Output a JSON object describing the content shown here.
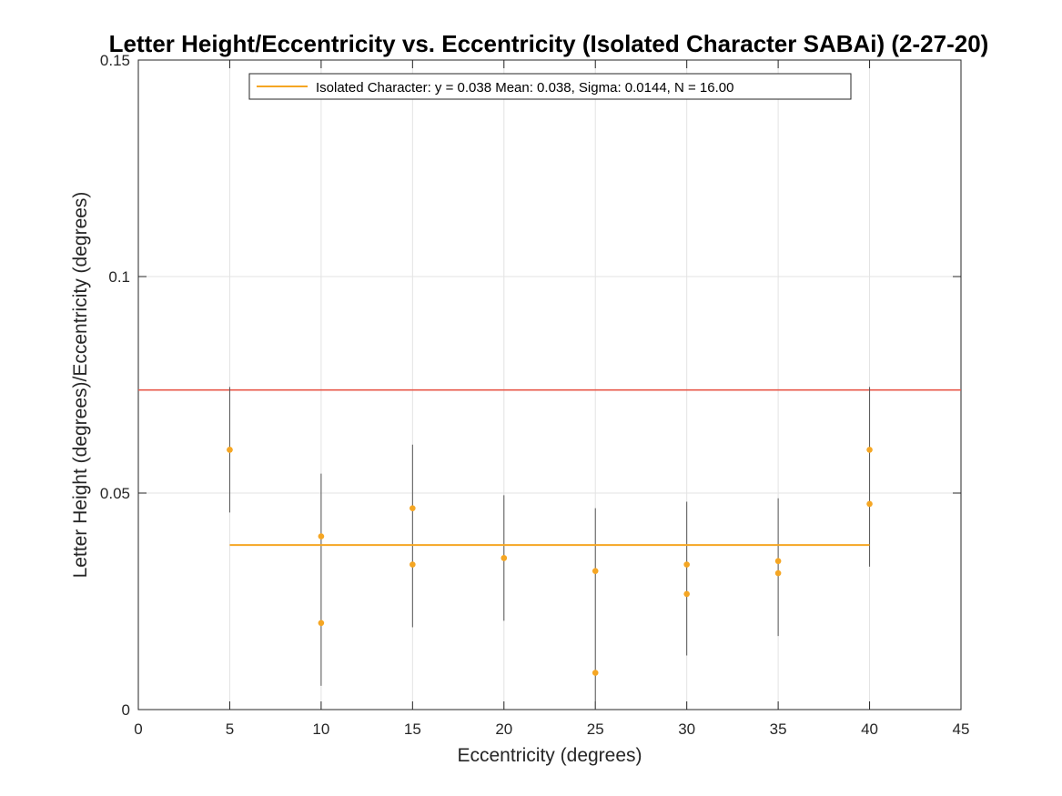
{
  "chart_data": {
    "type": "scatter",
    "title": "Letter Height/Eccentricity vs. Eccentricity (Isolated Character SABAi) (2-27-20)",
    "xlabel": "Eccentricity (degrees)",
    "ylabel": "Letter Height (degrees)/Eccentricity (degrees)",
    "xlim": [
      0,
      45
    ],
    "ylim": [
      0,
      0.15
    ],
    "xticks": [
      0,
      5,
      10,
      15,
      20,
      25,
      30,
      35,
      40,
      45
    ],
    "xtick_labels": [
      "0",
      "5",
      "10",
      "15",
      "20",
      "25",
      "30",
      "35",
      "40",
      "45"
    ],
    "yticks": [
      0,
      0.05,
      0.1,
      0.15
    ],
    "ytick_labels": [
      "0",
      "0.05",
      "0.1",
      "0.15"
    ],
    "grid": true,
    "legend_position": "top",
    "legend": [
      {
        "label": "Isolated Character: y = 0.038 Mean: 0.038, Sigma: 0.0144, N = 16.00",
        "color": "#f5a623"
      }
    ],
    "series": [
      {
        "name": "Isolated Character",
        "color": "#f5a623",
        "x": [
          5,
          5,
          10,
          10,
          15,
          15,
          20,
          20,
          25,
          25,
          30,
          30,
          35,
          35,
          40,
          40
        ],
        "y": [
          0.06,
          0.06,
          0.04,
          0.02,
          0.0465,
          0.0335,
          0.035,
          0.035,
          0.032,
          0.0085,
          0.0335,
          0.0267,
          0.0343,
          0.0315,
          0.06,
          0.0475
        ]
      }
    ],
    "error_bars": [
      {
        "x": 5,
        "low": 0.0455,
        "high": 0.0745
      },
      {
        "x": 10,
        "low": 0.0055,
        "high": 0.0545
      },
      {
        "x": 15,
        "low": 0.019,
        "high": 0.0612
      },
      {
        "x": 20,
        "low": 0.0205,
        "high": 0.0495
      },
      {
        "x": 25,
        "low": 0.0,
        "high": 0.0465
      },
      {
        "x": 30,
        "low": 0.0125,
        "high": 0.048
      },
      {
        "x": 35,
        "low": 0.017,
        "high": 0.0488
      },
      {
        "x": 40,
        "low": 0.033,
        "high": 0.0745
      }
    ],
    "mean_line": {
      "y": 0.038,
      "x_start": 5,
      "x_end": 40,
      "color": "#f5a623"
    },
    "reference_line": {
      "y": 0.0738,
      "color": "#e8584a"
    }
  }
}
